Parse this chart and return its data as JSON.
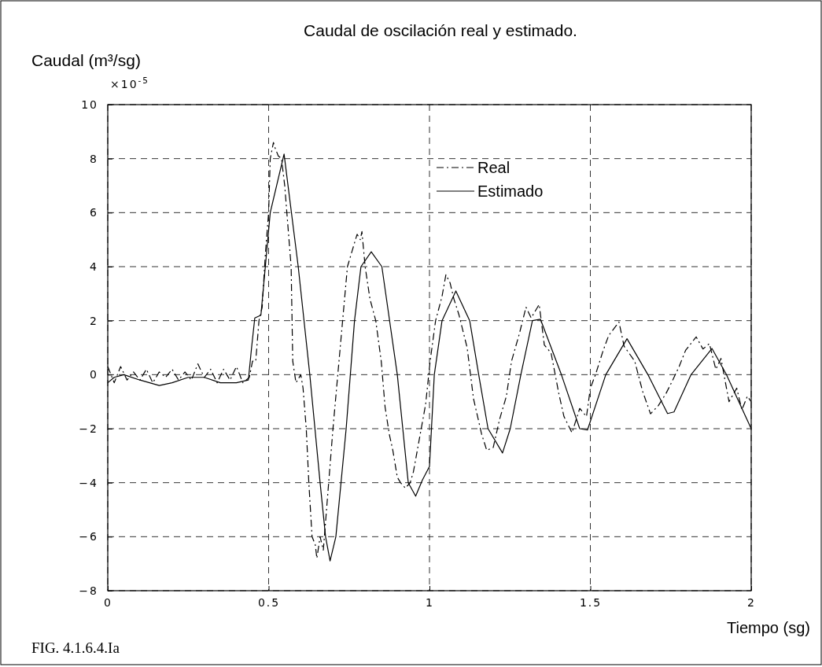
{
  "chart_data": {
    "type": "line",
    "title": "Caudal de oscilación real y estimado.",
    "ylabel": "Caudal (m³/sg)",
    "xlabel": "Tiempo (sg)",
    "annotations": [
      "×10$^{-5}$",
      "FIG. 4.1.6.4.Ia"
    ],
    "xlim": [
      0,
      2
    ],
    "xticks": [
      0,
      0.5,
      1,
      1.5,
      2
    ],
    "ylim": [
      -8,
      10
    ],
    "yticks": [
      -8,
      -6,
      -4,
      -2,
      0,
      2,
      4,
      6,
      8,
      10
    ],
    "grid": true,
    "legend": "top right",
    "series": [
      {
        "name": "Real",
        "color": "#000000",
        "line_style": "dashed",
        "x": [
          0,
          0.02,
          0.04,
          0.06,
          0.08,
          0.1,
          0.12,
          0.14,
          0.16,
          0.18,
          0.2,
          0.22,
          0.24,
          0.26,
          0.28,
          0.3,
          0.32,
          0.34,
          0.36,
          0.38,
          0.4,
          0.42,
          0.44,
          0.45,
          0.46,
          0.47,
          0.48,
          0.49,
          0.5,
          0.505,
          0.515,
          0.52,
          0.53,
          0.54,
          0.55,
          0.57,
          0.575,
          0.585,
          0.6,
          0.607,
          0.617,
          0.625,
          0.635,
          0.645,
          0.65,
          0.66,
          0.67,
          0.68,
          0.7,
          0.715,
          0.73,
          0.745,
          0.76,
          0.775,
          0.785,
          0.79,
          0.8,
          0.815,
          0.833,
          0.85,
          0.862,
          0.875,
          0.886,
          0.9,
          0.91,
          0.925,
          0.94,
          0.95,
          0.988,
          1.002,
          1.019,
          1.039,
          1.051,
          1.064,
          1.076,
          1.092,
          1.117,
          1.137,
          1.162,
          1.178,
          1.198,
          1.218,
          1.239,
          1.255,
          1.279,
          1.3,
          1.316,
          1.341,
          1.357,
          1.378,
          1.402,
          1.418,
          1.443,
          1.467,
          1.488,
          1.5,
          1.516,
          1.54,
          1.557,
          1.589,
          1.605,
          1.638,
          1.662,
          1.687,
          1.711,
          1.735,
          1.752,
          1.776,
          1.796,
          1.829,
          1.85,
          1.87,
          1.89,
          1.906,
          1.931,
          1.955,
          1.971,
          1.988,
          2.0
        ],
        "values": [
          0.3,
          -0.3,
          0.3,
          -0.2,
          0.1,
          -0.2,
          0.2,
          -0.3,
          0.1,
          -0.1,
          0.2,
          -0.2,
          0.1,
          -0.2,
          0.4,
          -0.1,
          0.2,
          -0.3,
          0.2,
          -0.2,
          0.3,
          -0.3,
          -0.1,
          0.5,
          0.5,
          2,
          2.5,
          4.5,
          6,
          8,
          8.6,
          8.4,
          8.1,
          8,
          7,
          4,
          0.5,
          -0.3,
          0,
          -0.5,
          -2,
          -4,
          -6,
          -6.3,
          -6.8,
          -6,
          -6.5,
          -5,
          -2,
          0,
          2,
          4,
          4.6,
          5.2,
          5,
          5.3,
          4,
          2.8,
          2,
          0.5,
          -1.2,
          -2.2,
          -2.8,
          -3.8,
          -4,
          -4.2,
          -4,
          -3.6,
          -1.1,
          0.5,
          2,
          2.9,
          3.7,
          3.4,
          2.8,
          2.2,
          1,
          -0.9,
          -2.2,
          -2.8,
          -2.7,
          -1.65,
          -0.8,
          0.5,
          1.5,
          2.5,
          2.1,
          2.6,
          1.1,
          0.8,
          -0.7,
          -1.55,
          -2.15,
          -1.25,
          -1.55,
          -0.5,
          0,
          0.9,
          1.45,
          1.95,
          1.05,
          0.5,
          -0.6,
          -1.45,
          -1.15,
          -0.7,
          -0.3,
          0.3,
          0.9,
          1.4,
          0.95,
          1.15,
          0.2,
          0.6,
          -1.0,
          -0.5,
          -1.3,
          -0.8,
          -1.0
        ]
      },
      {
        "name": "Estimado",
        "color": "#000000",
        "line_style": "solid",
        "x": [
          0,
          0.02,
          0.05,
          0.1,
          0.16,
          0.2,
          0.25,
          0.3,
          0.35,
          0.4,
          0.437,
          0.447,
          0.457,
          0.476,
          0.505,
          0.548,
          0.592,
          0.628,
          0.66,
          0.677,
          0.691,
          0.709,
          0.741,
          0.767,
          0.787,
          0.819,
          0.852,
          0.9,
          0.934,
          0.957,
          0.978,
          1.0,
          1.015,
          1.039,
          1.082,
          1.125,
          1.153,
          1.182,
          1.227,
          1.251,
          1.284,
          1.32,
          1.345,
          1.41,
          1.467,
          1.491,
          1.548,
          1.614,
          1.679,
          1.74,
          1.76,
          1.813,
          1.878,
          1.923,
          2.0
        ],
        "values": [
          -0.3,
          -0.1,
          0,
          -0.2,
          -0.4,
          -0.3,
          -0.1,
          -0.1,
          -0.3,
          -0.3,
          -0.2,
          1,
          2.1,
          2.2,
          6,
          8.17,
          4,
          0,
          -4,
          -6,
          -6.9,
          -6,
          -2,
          2,
          4,
          4.55,
          4,
          0,
          -4,
          -4.5,
          -3.9,
          -3.4,
          0,
          2,
          3.1,
          2,
          0,
          -2,
          -2.9,
          -2,
          0,
          2,
          2.05,
          0,
          -2,
          -2.05,
          0,
          1.33,
          0,
          -1.44,
          -1.38,
          0,
          0.97,
          0,
          -2.0
        ]
      }
    ]
  }
}
